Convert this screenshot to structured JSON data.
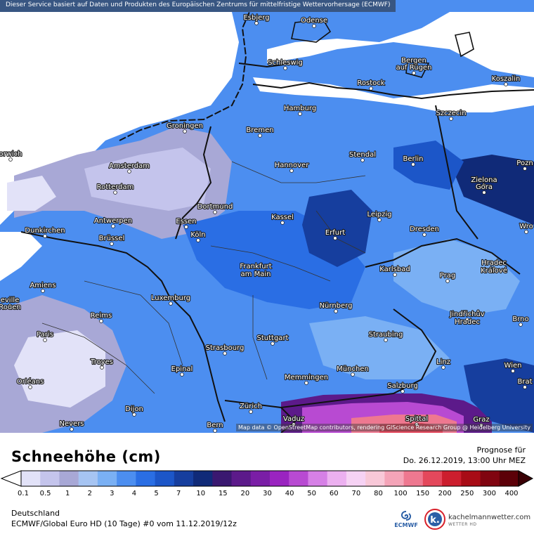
{
  "header": {
    "service_note": "Dieser Service basiert auf Daten und Produkten des Europäischen Zentrums für mittelfristige Wettervorhersage (ECMWF)"
  },
  "map": {
    "attribution": "Map data © OpenStreetMap contributors, rendering GIScience Research Group @ Heidelberg University",
    "cities": [
      {
        "name": "Esbjerg"
      },
      {
        "name": "Odense"
      },
      {
        "name": "Schleswig"
      },
      {
        "name": "Bergen"
      },
      {
        "name": "auf Rügen"
      },
      {
        "name": "Rostock"
      },
      {
        "name": "Koszalin"
      },
      {
        "name": "Hamburg"
      },
      {
        "name": "Szczecin"
      },
      {
        "name": "Groningen"
      },
      {
        "name": "Bremen"
      },
      {
        "name": "orwich"
      },
      {
        "name": "Amsterdam"
      },
      {
        "name": "Hannover"
      },
      {
        "name": "Stendal"
      },
      {
        "name": "Berlin"
      },
      {
        "name": "Pozn"
      },
      {
        "name": "Rotterdam"
      },
      {
        "name": "Zielona"
      },
      {
        "name": "Góra"
      },
      {
        "name": "Dortmund"
      },
      {
        "name": "Antwerpen"
      },
      {
        "name": "Essen"
      },
      {
        "name": "Kassel"
      },
      {
        "name": "Leipzig"
      },
      {
        "name": "Dunkirchen"
      },
      {
        "name": "Köln"
      },
      {
        "name": "Erfurt"
      },
      {
        "name": "Dresden"
      },
      {
        "name": "Wro"
      },
      {
        "name": "Brüssel"
      },
      {
        "name": "Frankfurt"
      },
      {
        "name": "am Main"
      },
      {
        "name": "Karlsbad"
      },
      {
        "name": "Hradec"
      },
      {
        "name": "Králové"
      },
      {
        "name": "Amiens"
      },
      {
        "name": "Prag"
      },
      {
        "name": "Luxemburg"
      },
      {
        "name": "Nürnberg"
      },
      {
        "name": "eville"
      },
      {
        "name": "Rouen"
      },
      {
        "name": "Reims"
      },
      {
        "name": "Jindřichův"
      },
      {
        "name": "Hradec"
      },
      {
        "name": "Brno"
      },
      {
        "name": "Paris"
      },
      {
        "name": "Stuttgart"
      },
      {
        "name": "Straubing"
      },
      {
        "name": "Strasbourg"
      },
      {
        "name": "Troyes"
      },
      {
        "name": "Linz"
      },
      {
        "name": "Epinal"
      },
      {
        "name": "München"
      },
      {
        "name": "Wien"
      },
      {
        "name": "Memmingen"
      },
      {
        "name": "Orléans"
      },
      {
        "name": "Brat"
      },
      {
        "name": "Salzburg"
      },
      {
        "name": "Zürich"
      },
      {
        "name": "Dijon"
      },
      {
        "name": "Vaduz"
      },
      {
        "name": "Spittal"
      },
      {
        "name": "Nevers"
      },
      {
        "name": "Bern"
      },
      {
        "name": "Graz"
      }
    ]
  },
  "legend": {
    "title": "Schneehöhe (cm)",
    "forecast_label": "Prognose für",
    "forecast_date": "Do. 26.12.2019, 13:00 Uhr MEZ",
    "ticks": [
      "0.1",
      "0.5",
      "1",
      "2",
      "3",
      "4",
      "5",
      "7",
      "10",
      "15",
      "20",
      "30",
      "40",
      "50",
      "60",
      "70",
      "80",
      "100",
      "150",
      "200",
      "250",
      "300",
      "400"
    ],
    "colors": [
      "#e2e2f8",
      "#c4c4ec",
      "#a8a8d6",
      "#a6c4f2",
      "#7ab0f4",
      "#4c8ef0",
      "#2a6ee4",
      "#1c56c8",
      "#163e9e",
      "#102a78",
      "#3a1870",
      "#5c1a8a",
      "#7a1ea6",
      "#9a24c0",
      "#b84ad2",
      "#d680e6",
      "#ecb0f0",
      "#f6d2f4",
      "#f8c8d8",
      "#f4a4b8",
      "#ee7890",
      "#e4485c",
      "#cc1e2e",
      "#a80c16",
      "#800410",
      "#5c0008"
    ],
    "region": "Deutschland",
    "model": "ECMWF/Global Euro HD (10 Tage) #0 vom  11.12.2019/12z"
  },
  "logos": {
    "ecmwf": "ECMWF",
    "kachelmann": "kachelmannwetter.com",
    "kachelmann_sub": "WETTER HD",
    "kachelmann_badge": "k."
  }
}
